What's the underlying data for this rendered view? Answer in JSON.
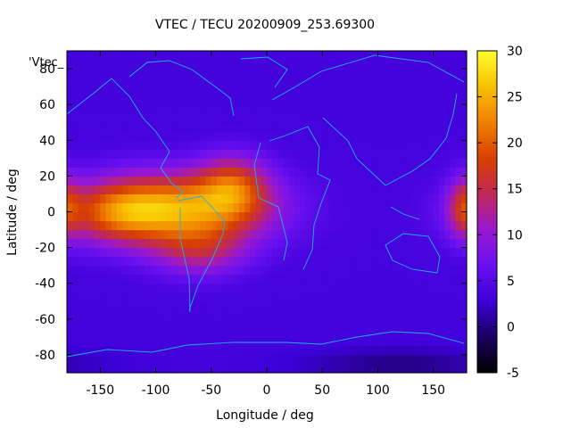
{
  "chart_data": {
    "type": "heatmap",
    "title": "VTEC / TECU 20200909_253.69300",
    "xlabel": "Longitude / deg",
    "ylabel": "Latitude / deg",
    "xlim": [
      -180,
      180
    ],
    "ylim": [
      -90,
      90
    ],
    "x_ticks": [
      -150,
      -100,
      -50,
      0,
      50,
      100,
      150
    ],
    "y_ticks": [
      -80,
      -60,
      -40,
      -20,
      0,
      20,
      40,
      60,
      80
    ],
    "colorbar": {
      "min": -5,
      "max": 30,
      "ticks": [
        -5,
        0,
        5,
        10,
        15,
        20,
        25,
        30
      ],
      "palette": [
        "#000000",
        "#1a0060",
        "#3c00d8",
        "#6a10f0",
        "#9818d0",
        "#c02858",
        "#d84000",
        "#f08000",
        "#f8c000",
        "#ffff30"
      ]
    },
    "series_label": "'Vtec_",
    "field_model": {
      "units": "TECU",
      "background": 3.5,
      "grid_step_deg": 5,
      "enhancements": [
        {
          "lon": -75,
          "lat": 2,
          "amp": 19,
          "sigma_lon": 55,
          "sigma_lat": 14
        },
        {
          "lon": -135,
          "lat": 0,
          "amp": 11,
          "sigma_lon": 35,
          "sigma_lat": 12
        },
        {
          "lon": -30,
          "lat": 15,
          "amp": 11,
          "sigma_lon": 22,
          "sigma_lat": 12
        },
        {
          "lon": -60,
          "lat": -22,
          "amp": 8,
          "sigma_lon": 30,
          "sigma_lat": 10
        },
        {
          "lon": 178,
          "lat": 3,
          "amp": 9,
          "sigma_lon": 10,
          "sigma_lat": 12
        },
        {
          "lon": 120,
          "lat": -85,
          "amp": -3.5,
          "sigma_lon": 60,
          "sigma_lat": 6
        }
      ]
    }
  },
  "coastline_color": "#20b0f0"
}
